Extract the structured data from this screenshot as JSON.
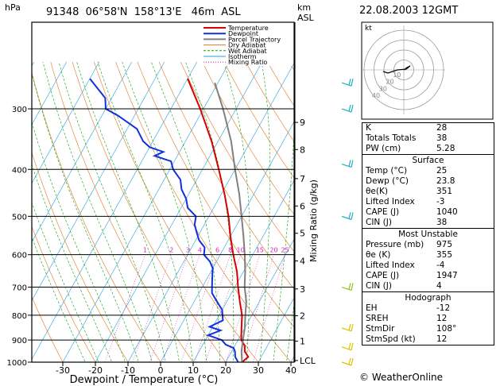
{
  "header": {
    "station_info": "91348  06°58'N  158°13'E   46m  ASL",
    "p_unit": "hPa",
    "km_label": "km",
    "asl_label": "ASL",
    "date": "22.08.2003  12GMT"
  },
  "colors": {
    "temperature": "#d80000",
    "dewpoint": "#1030e0",
    "parcel": "#808080",
    "dry_adiabat": "#e07820",
    "wet_adiabat": "#10a010",
    "isotherm": "#20a0e0",
    "mixing_ratio": "#e020c0",
    "wind": "#20b0c0"
  },
  "legend": [
    "Temperature",
    "Dewpoint",
    "Parcel Trajectory",
    "Dry Adiabat",
    "Wet Adiabat",
    "Isotherm",
    "Mixing Ratio"
  ],
  "chart_data": {
    "type": "line",
    "title": "",
    "xlabel": "Dewpoint / Temperature (°C)",
    "ylabel": "hPa",
    "y2label": "Mixing Ratio (g/kg)",
    "x_ticks": [
      -30,
      -20,
      -10,
      0,
      10,
      20,
      30,
      40
    ],
    "p_ticks": [
      300,
      400,
      500,
      600,
      700,
      800,
      900,
      1000
    ],
    "km_ticks": [
      {
        "label": "1",
        "p": 905
      },
      {
        "label": "2",
        "p": 802
      },
      {
        "label": "3",
        "p": 706
      },
      {
        "label": "4",
        "p": 618
      },
      {
        "label": "5",
        "p": 542
      },
      {
        "label": "6",
        "p": 476
      },
      {
        "label": "7",
        "p": 418
      },
      {
        "label": "8",
        "p": 364
      },
      {
        "label": "9",
        "p": 320
      },
      {
        "label": "LCL",
        "p": 992
      }
    ],
    "mixing_ratio_labels": [
      {
        "label": "1",
        "w": 1
      },
      {
        "label": "2",
        "w": 2
      },
      {
        "label": "3",
        "w": 3
      },
      {
        "label": "4",
        "w": 4
      },
      {
        "label": "6",
        "w": 6
      },
      {
        "label": "8",
        "w": 8
      },
      {
        "label": "10",
        "w": 10
      },
      {
        "label": "15",
        "w": 15
      },
      {
        "label": "20",
        "w": 20
      },
      {
        "label": "25",
        "w": 25
      }
    ],
    "series": [
      {
        "name": "Temperature",
        "points": [
          [
            1000,
            25
          ],
          [
            975,
            26
          ],
          [
            950,
            24
          ],
          [
            925,
            23
          ],
          [
            900,
            21
          ],
          [
            875,
            20
          ],
          [
            850,
            19
          ],
          [
            800,
            17
          ],
          [
            750,
            14
          ],
          [
            700,
            11
          ],
          [
            650,
            8
          ],
          [
            600,
            4
          ],
          [
            550,
            0
          ],
          [
            500,
            -4
          ],
          [
            450,
            -9
          ],
          [
            400,
            -15
          ],
          [
            350,
            -22
          ],
          [
            300,
            -31
          ],
          [
            260,
            -40
          ]
        ]
      },
      {
        "name": "Dewpoint",
        "points": [
          [
            1000,
            23.8
          ],
          [
            975,
            22
          ],
          [
            950,
            21
          ],
          [
            935,
            20
          ],
          [
            920,
            17
          ],
          [
            900,
            15
          ],
          [
            880,
            10
          ],
          [
            860,
            13
          ],
          [
            845,
            9
          ],
          [
            820,
            12
          ],
          [
            800,
            11
          ],
          [
            780,
            10
          ],
          [
            760,
            8
          ],
          [
            740,
            6
          ],
          [
            720,
            4
          ],
          [
            700,
            3
          ],
          [
            680,
            2
          ],
          [
            660,
            1
          ],
          [
            640,
            0
          ],
          [
            620,
            -2
          ],
          [
            600,
            -5
          ],
          [
            580,
            -6
          ],
          [
            560,
            -9
          ],
          [
            540,
            -11
          ],
          [
            520,
            -13
          ],
          [
            500,
            -14
          ],
          [
            480,
            -18
          ],
          [
            460,
            -20
          ],
          [
            440,
            -23
          ],
          [
            420,
            -25
          ],
          [
            400,
            -29
          ],
          [
            385,
            -31
          ],
          [
            375,
            -37
          ],
          [
            368,
            -35
          ],
          [
            360,
            -40
          ],
          [
            350,
            -43
          ],
          [
            330,
            -47
          ],
          [
            310,
            -55
          ],
          [
            300,
            -60
          ],
          [
            285,
            -62
          ],
          [
            260,
            -70
          ]
        ]
      },
      {
        "name": "Parcel Trajectory",
        "points": [
          [
            1000,
            25
          ],
          [
            950,
            23
          ],
          [
            900,
            21.5
          ],
          [
            850,
            20
          ],
          [
            800,
            18
          ],
          [
            750,
            16
          ],
          [
            700,
            13
          ],
          [
            650,
            10.5
          ],
          [
            600,
            7.5
          ],
          [
            550,
            4
          ],
          [
            500,
            0
          ],
          [
            450,
            -4.5
          ],
          [
            400,
            -10
          ],
          [
            350,
            -16
          ],
          [
            300,
            -24
          ],
          [
            265,
            -31
          ]
        ]
      }
    ]
  },
  "hodograph": {
    "label": "kt",
    "ring_labels": [
      "10",
      "20",
      "30",
      "40"
    ]
  },
  "wind_barbs_p": [
    265,
    300,
    390,
    500,
    700,
    850,
    930,
    1000
  ],
  "indices": {
    "k_label": "K",
    "k": "28",
    "tt_label": "Totals Totals",
    "tt": "38",
    "pw_label": "PW (cm)",
    "pw": "5.28"
  },
  "surface": {
    "title": "Surface",
    "temp_label": "Temp (°C)",
    "temp": "25",
    "dewp_label": "Dewp (°C)",
    "dewp": "23.8",
    "thetae_label": "θe(K)",
    "thetae": "351",
    "li_label": "Lifted Index",
    "li": "-3",
    "cape_label": "CAPE (J)",
    "cape": "1040",
    "cin_label": "CIN (J)",
    "cin": "38"
  },
  "most_unstable": {
    "title": "Most Unstable",
    "pressure_label": "Pressure (mb)",
    "pressure": "975",
    "thetae_label": "θe (K)",
    "thetae": "355",
    "li_label": "Lifted Index",
    "li": "-4",
    "cape_label": "CAPE (J)",
    "cape": "1947",
    "cin_label": "CIN (J)",
    "cin": "4"
  },
  "hodograph_table": {
    "title": "Hodograph",
    "eh_label": "EH",
    "eh": "-12",
    "sreh_label": "SREH",
    "sreh": "12",
    "stmdir_label": "StmDir",
    "stmdir": "108°",
    "stmspd_label": "StmSpd (kt)",
    "stmspd": "12"
  },
  "brand": "© WeatherOnline"
}
